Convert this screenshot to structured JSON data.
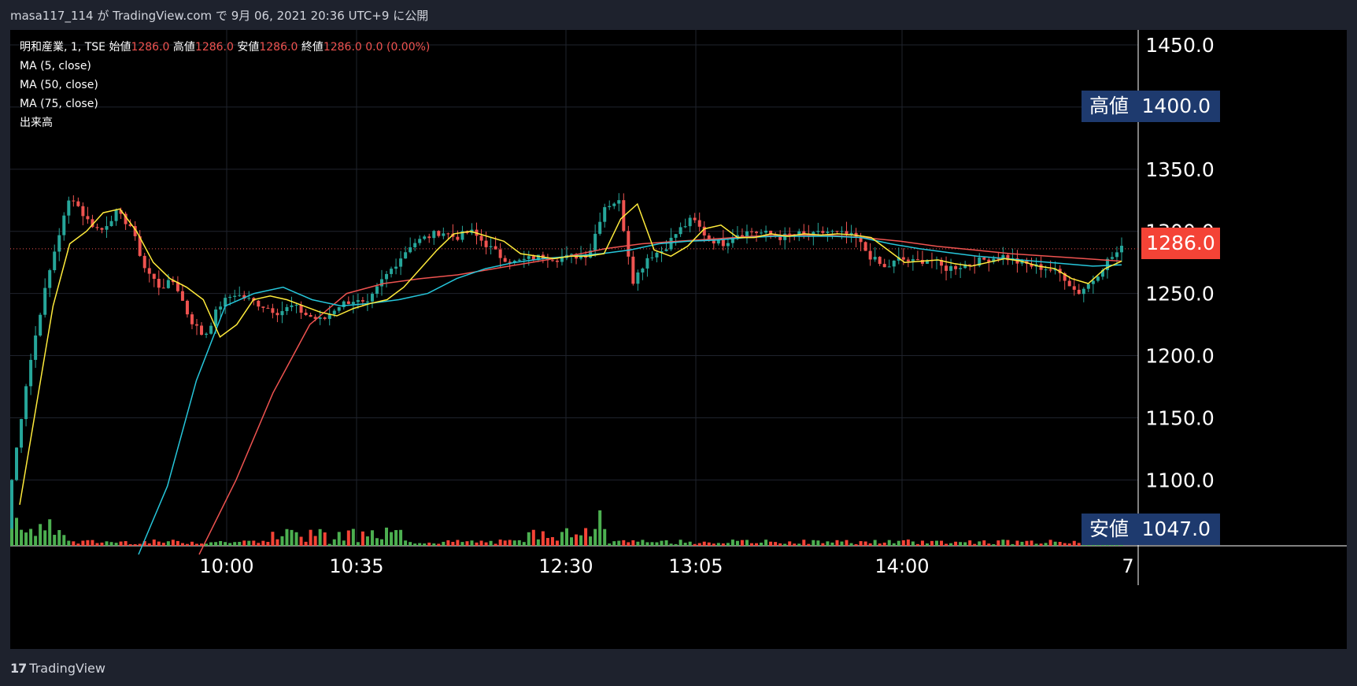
{
  "header": {
    "publish_line": "masa117_114 が TradingView.com で 9月 06, 2021 20:36 UTC+9 に公開"
  },
  "legend": {
    "symbol": "明和産業, 1, TSE",
    "open_label": "始値",
    "open": "1286.0",
    "high_label": "高値",
    "high": "1286.0",
    "low_label": "安値",
    "low": "1286.0",
    "close_label": "終値",
    "close": "1286.0",
    "change": "0.0 (0.00%)",
    "ma5": "MA (5, close)",
    "ma50": "MA (50, close)",
    "ma75": "MA (75, close)",
    "volume": "出来高"
  },
  "tags": {
    "high_label": "高値",
    "high_value": "1400.0",
    "low_label": "安値",
    "low_value": "1047.0",
    "last_value": "1286.0"
  },
  "footer": {
    "brand": "TradingView",
    "logo": "17"
  },
  "colors": {
    "up": "#26a69a",
    "down": "#ef5350",
    "ma5": "#ffeb3b",
    "ma50": "#26c6da",
    "ma75": "#ef5350",
    "vol_up": "#4caf50",
    "vol_down": "#f44336",
    "tag_bg": "#1e3a6e",
    "last_bg": "#f44336"
  },
  "chart_data": {
    "type": "candlestick",
    "y_ticks": [
      "1450.0",
      "1350.0",
      "1300.0",
      "1250.0",
      "1200.0",
      "1150.0",
      "1100.0"
    ],
    "x_ticks": [
      "10:00",
      "10:35",
      "12:30",
      "13:05",
      "14:00",
      "7"
    ],
    "ylim": [
      1047,
      1450
    ],
    "key_points": {
      "close": [
        1100,
        1180,
        1240,
        1290,
        1330,
        1310,
        1300,
        1315,
        1305,
        1270,
        1255,
        1260,
        1230,
        1215,
        1240,
        1250,
        1245,
        1240,
        1235,
        1240,
        1232,
        1228,
        1240,
        1245,
        1240,
        1260,
        1275,
        1290,
        1295,
        1300,
        1295,
        1300,
        1290,
        1280,
        1275,
        1278,
        1280,
        1278,
        1280,
        1282,
        1320,
        1325,
        1260,
        1280,
        1285,
        1300,
        1310,
        1295,
        1290,
        1298,
        1300,
        1298,
        1295,
        1298,
        1296,
        1300,
        1298,
        1295,
        1280,
        1270,
        1278,
        1275,
        1278,
        1270,
        1272,
        1275,
        1278,
        1280,
        1275,
        1272,
        1270,
        1265,
        1250,
        1260,
        1276,
        1286
      ],
      "ma5": [
        1080,
        1160,
        1240,
        1290,
        1300,
        1315,
        1318,
        1300,
        1275,
        1262,
        1255,
        1245,
        1215,
        1225,
        1245,
        1248,
        1245,
        1240,
        1235,
        1232,
        1238,
        1242,
        1245,
        1255,
        1270,
        1285,
        1298,
        1300,
        1296,
        1292,
        1282,
        1280,
        1278,
        1280,
        1280,
        1282,
        1310,
        1322,
        1285,
        1280,
        1288,
        1302,
        1305,
        1295,
        1295,
        1298,
        1296,
        1298,
        1297,
        1298,
        1297,
        1295,
        1285,
        1275,
        1276,
        1277,
        1274,
        1272,
        1275,
        1278,
        1276,
        1272,
        1270,
        1262,
        1258,
        1270,
        1276
      ],
      "ma50": [
        1040,
        1095,
        1180,
        1240,
        1250,
        1255,
        1245,
        1240,
        1242,
        1245,
        1250,
        1262,
        1270,
        1275,
        1278,
        1280,
        1282,
        1285,
        1290,
        1292,
        1293,
        1295,
        1296,
        1296,
        1296,
        1295,
        1290,
        1286,
        1283,
        1280,
        1278,
        1276,
        1274,
        1272,
        1273
      ],
      "ma75": [
        1040,
        1100,
        1170,
        1225,
        1250,
        1258,
        1262,
        1265,
        1270,
        1275,
        1280,
        1286,
        1290,
        1292,
        1294,
        1296,
        1297,
        1297,
        1295,
        1292,
        1288,
        1285,
        1282,
        1280,
        1278,
        1276
      ]
    },
    "last_price": 1286.0,
    "series": [
      {
        "name": "MA (5, close)"
      },
      {
        "name": "MA (50, close)"
      },
      {
        "name": "MA (75, close)"
      },
      {
        "name": "出来高"
      }
    ]
  }
}
